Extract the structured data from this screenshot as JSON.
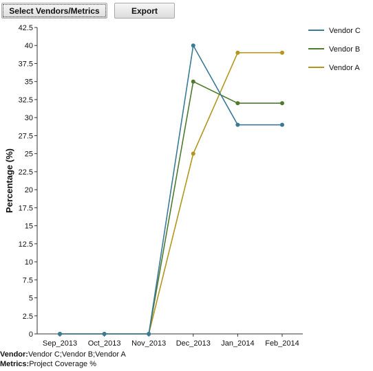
{
  "toolbar": {
    "select_label": "Select Vendors/Metrics",
    "export_label": "Export"
  },
  "chart_data": {
    "type": "line",
    "ylabel": "Percentage (%)",
    "xlabel": "",
    "categories": [
      "Sep_2013",
      "Oct_2013",
      "Nov_2013",
      "Dec_2013",
      "Jan_2014",
      "Feb_2014"
    ],
    "ylim": [
      0,
      42.5
    ],
    "yticks": [
      "0",
      "2.5",
      "5",
      "7.5",
      "10",
      "12.5",
      "15",
      "17.5",
      "20",
      "22.5",
      "25",
      "27.5",
      "30",
      "32.5",
      "35",
      "37.5",
      "40",
      "42.5"
    ],
    "grid": false,
    "legend_position": "right",
    "series": [
      {
        "name": "Vendor C",
        "color": "#3a7a96",
        "values": [
          0,
          0,
          0,
          40,
          29,
          29
        ]
      },
      {
        "name": "Vendor B",
        "color": "#4e7a2e",
        "values": [
          0,
          0,
          0,
          35,
          32,
          32
        ]
      },
      {
        "name": "Vendor A",
        "color": "#b3951f",
        "values": [
          0,
          0,
          0,
          25,
          39,
          39
        ]
      }
    ]
  },
  "footer": {
    "vendor_label": "Vendor:",
    "vendor_value": "Vendor C;Vendor B;Vendor A",
    "metrics_label": "Metrics:",
    "metrics_value": "Project Coverage %"
  }
}
